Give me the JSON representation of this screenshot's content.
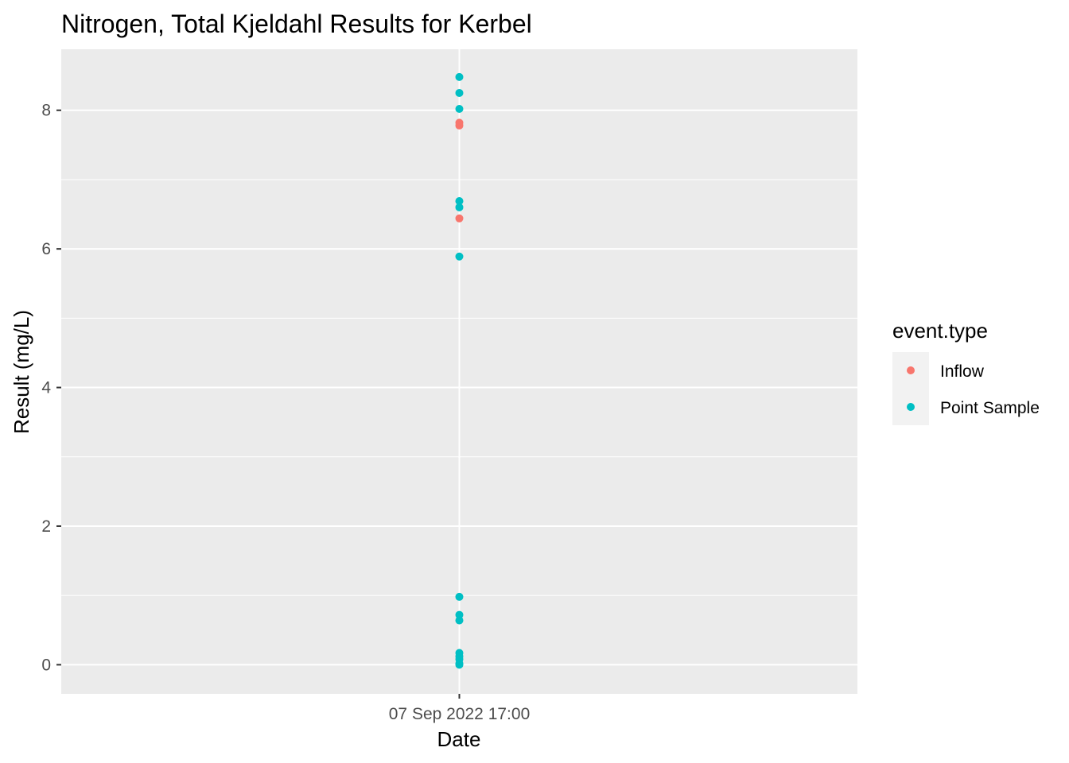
{
  "chart_data": {
    "type": "scatter",
    "title": "Nitrogen, Total Kjeldahl Results for Kerbel",
    "xlabel": "Date",
    "ylabel": "Result (mg/L)",
    "x_ticks": [
      "07 Sep 2022 17:00"
    ],
    "y_ticks": [
      0,
      2,
      4,
      6,
      8
    ],
    "ylim": [
      -0.42,
      8.88
    ],
    "grid": true,
    "legend": {
      "title": "event.type",
      "placement": "right",
      "entries": [
        {
          "name": "Inflow",
          "color": "#F8766D"
        },
        {
          "name": "Point Sample",
          "color": "#00BFC4"
        }
      ]
    },
    "series": [
      {
        "name": "Inflow",
        "color": "#F8766D",
        "x": [
          "07 Sep 2022 17:00",
          "07 Sep 2022 17:00",
          "07 Sep 2022 17:00"
        ],
        "y": [
          7.82,
          7.78,
          6.44
        ]
      },
      {
        "name": "Point Sample",
        "color": "#00BFC4",
        "x": [
          "07 Sep 2022 17:00",
          "07 Sep 2022 17:00",
          "07 Sep 2022 17:00",
          "07 Sep 2022 17:00",
          "07 Sep 2022 17:00",
          "07 Sep 2022 17:00",
          "07 Sep 2022 17:00",
          "07 Sep 2022 17:00",
          "07 Sep 2022 17:00",
          "07 Sep 2022 17:00",
          "07 Sep 2022 17:00",
          "07 Sep 2022 17:00",
          "07 Sep 2022 17:00",
          "07 Sep 2022 17:00"
        ],
        "y": [
          8.48,
          8.25,
          8.02,
          6.69,
          6.6,
          5.89,
          0.98,
          0.72,
          0.64,
          0.17,
          0.12,
          0.08,
          0.02,
          0.0
        ]
      }
    ]
  }
}
